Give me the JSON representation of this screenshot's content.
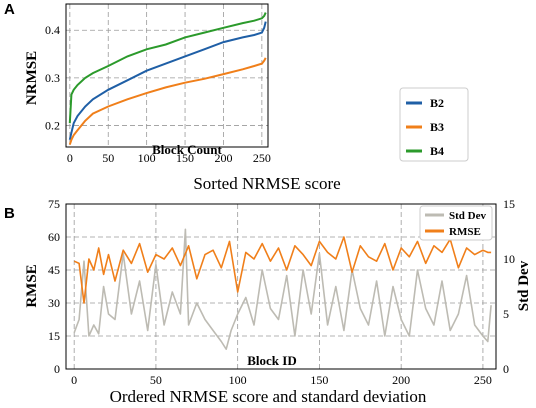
{
  "chart_data": [
    {
      "panel_label": "A",
      "type": "line",
      "xlabel": "Block Count",
      "ylabel": "NRMSE",
      "caption": "Sorted NRMSE score",
      "xlim": [
        -5,
        258
      ],
      "ylim": [
        0.155,
        0.455
      ],
      "xticks": [
        "0",
        "50",
        "100",
        "150",
        "200",
        "250"
      ],
      "yticks": [
        "0.2",
        "0.3",
        "0.4"
      ],
      "grid": true,
      "legend_position": "bottom-right",
      "colors": {
        "B2": "#1f5fa6",
        "B3": "#f07f1a",
        "B4": "#2b9a2b"
      },
      "series": [
        {
          "name": "B2",
          "x": [
            0,
            2,
            5,
            10,
            20,
            30,
            50,
            75,
            100,
            125,
            150,
            175,
            200,
            225,
            240,
            250,
            253,
            255
          ],
          "values": [
            0.17,
            0.185,
            0.205,
            0.22,
            0.24,
            0.255,
            0.275,
            0.295,
            0.315,
            0.33,
            0.345,
            0.36,
            0.375,
            0.385,
            0.39,
            0.395,
            0.405,
            0.418
          ]
        },
        {
          "name": "B3",
          "x": [
            0,
            2,
            5,
            10,
            20,
            30,
            50,
            75,
            100,
            125,
            150,
            175,
            200,
            225,
            240,
            250,
            253,
            255
          ],
          "values": [
            0.16,
            0.17,
            0.18,
            0.19,
            0.21,
            0.225,
            0.24,
            0.255,
            0.268,
            0.28,
            0.29,
            0.298,
            0.308,
            0.318,
            0.325,
            0.33,
            0.336,
            0.342
          ]
        },
        {
          "name": "B4",
          "x": [
            0,
            2,
            5,
            10,
            20,
            30,
            50,
            75,
            100,
            125,
            150,
            175,
            200,
            225,
            240,
            250,
            253,
            255
          ],
          "values": [
            0.205,
            0.265,
            0.275,
            0.285,
            0.3,
            0.31,
            0.325,
            0.345,
            0.36,
            0.37,
            0.385,
            0.395,
            0.405,
            0.415,
            0.42,
            0.425,
            0.43,
            0.437
          ]
        }
      ]
    },
    {
      "panel_label": "B",
      "type": "line",
      "xlabel": "Block ID",
      "ylabel": "RMSE",
      "ylabel_right": "Std Dev",
      "caption": "Ordered NRMSE score and standard deviation",
      "xlim": [
        -5,
        258
      ],
      "ylim": [
        0,
        75
      ],
      "ylim_right": [
        0,
        15
      ],
      "xticks": [
        "0",
        "50",
        "100",
        "150",
        "200",
        "250"
      ],
      "yticks": [
        "0",
        "15",
        "30",
        "45",
        "60",
        "75"
      ],
      "yticks_right": [
        "0",
        "5",
        "10",
        "15"
      ],
      "grid": true,
      "legend_position": "top-right",
      "colors": {
        "Std Dev": "#bdbbb3",
        "RMSE": "#f07f1a"
      },
      "series": [
        {
          "name": "Std Dev",
          "axis": "right",
          "x": [
            0,
            3,
            6,
            9,
            12,
            15,
            18,
            21,
            25,
            30,
            35,
            40,
            45,
            50,
            55,
            60,
            65,
            68,
            70,
            75,
            80,
            85,
            90,
            93,
            96,
            100,
            105,
            110,
            115,
            120,
            125,
            130,
            135,
            140,
            145,
            150,
            155,
            160,
            165,
            170,
            175,
            180,
            185,
            190,
            195,
            200,
            205,
            210,
            215,
            220,
            225,
            230,
            235,
            240,
            245,
            250,
            253,
            255
          ],
          "values": [
            3.3,
            4.5,
            9.8,
            3.0,
            4.0,
            3.2,
            7.5,
            5.0,
            4.5,
            10.5,
            5.0,
            8.0,
            3.5,
            9.5,
            4.0,
            7.0,
            5.0,
            12.7,
            4.0,
            6.0,
            4.5,
            3.5,
            2.5,
            1.8,
            3.5,
            5.0,
            6.5,
            4.0,
            9.0,
            5.5,
            4.5,
            8.5,
            3.0,
            9.0,
            5.0,
            10.5,
            4.0,
            7.5,
            3.5,
            9.0,
            5.5,
            4.0,
            8.0,
            3.0,
            7.5,
            4.5,
            3.0,
            9.0,
            5.5,
            4.0,
            8.0,
            3.5,
            5.0,
            8.5,
            4.0,
            3.0,
            2.5,
            5.8
          ]
        },
        {
          "name": "RMSE",
          "axis": "left",
          "x": [
            0,
            3,
            6,
            9,
            12,
            15,
            18,
            21,
            25,
            30,
            35,
            40,
            45,
            50,
            55,
            60,
            65,
            70,
            75,
            80,
            85,
            90,
            95,
            100,
            105,
            110,
            115,
            120,
            125,
            130,
            135,
            140,
            145,
            150,
            155,
            160,
            165,
            170,
            175,
            180,
            185,
            190,
            195,
            200,
            205,
            210,
            215,
            220,
            225,
            230,
            235,
            240,
            245,
            250,
            253,
            255
          ],
          "values": [
            49,
            48,
            30,
            50,
            45,
            55,
            43,
            52,
            40,
            54,
            48,
            57,
            44,
            52,
            50,
            55,
            47,
            56,
            41,
            52,
            54,
            46,
            58,
            35,
            53,
            50,
            57,
            49,
            55,
            45,
            56,
            52,
            47,
            58,
            53,
            50,
            60,
            44,
            56,
            51,
            49,
            57,
            45,
            55,
            51,
            58,
            48,
            56,
            53,
            59,
            46,
            55,
            52,
            54,
            53,
            53
          ]
        }
      ]
    }
  ]
}
